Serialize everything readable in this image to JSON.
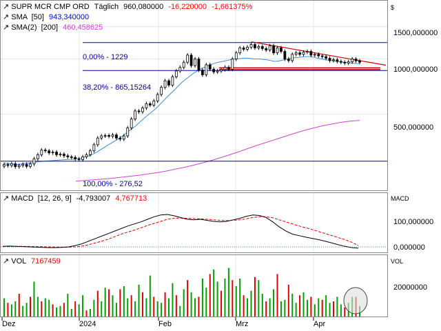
{
  "header": {
    "symbol": "SUPR MCR CMP ORD",
    "interval": "Täglich",
    "last": "960,080000",
    "change": "-16,220000",
    "change_pct": "-1,661375%",
    "currency": "$"
  },
  "colors": {
    "up": "#00a000",
    "down": "#e00000",
    "sma50": "#3a8fd8",
    "sma200": "#cc44cc",
    "fib": "#0000a0",
    "trend": "#d00000",
    "macd": "#000000",
    "signal": "#e00000",
    "label_blue": "#0000ff",
    "label_red": "#ff0000",
    "grid": "#e4e4e4"
  },
  "indicators": {
    "sma50_label": "SMA",
    "sma50_param": "[50]",
    "sma50_value": "943,340000",
    "sma200_label": "SMA(2)",
    "sma200_param": "[200]",
    "sma200_value": "460,458625",
    "macd_label": "MACD",
    "macd_param": "[12, 26, 9]",
    "macd_value": "-4,793007",
    "signal_value": "4,767713",
    "vol_label": "VOL",
    "vol_value": "7167459"
  },
  "fib_labels": {
    "top": "0,00% - 1229",
    "mid": "38,20% - 865,15264",
    "bottom": "100,00% - 276,52"
  },
  "axes": {
    "price_ticks": [
      "1500,000000",
      "1000,000000",
      "500,000000"
    ],
    "macd_title": "MACD",
    "macd_ticks": [
      "100,000000",
      "0,000000"
    ],
    "vol_title": "VOL",
    "vol_ticks": [
      "20000000"
    ],
    "x_ticks": [
      "Dez",
      "2024",
      "Feb",
      "Mrz",
      "Apr"
    ]
  },
  "chart_data": {
    "type": "candlestick",
    "price_scale": "log",
    "ylim": [
      190,
      2100
    ],
    "fib_levels": [
      1229,
      865.15264,
      276.52
    ],
    "price_closes": [
      265,
      262,
      268,
      258,
      262,
      266,
      259,
      267,
      285,
      300,
      318,
      315,
      307,
      310,
      300,
      302,
      296,
      292,
      290,
      284,
      282,
      292,
      300,
      315,
      340,
      370,
      380,
      382,
      378,
      385,
      370,
      365,
      380,
      420,
      470,
      520,
      515,
      540,
      570,
      560,
      590,
      640,
      700,
      760,
      720,
      800,
      860,
      900,
      960,
      1050,
      920,
      1000,
      870,
      820,
      930,
      880,
      850,
      860,
      875,
      900,
      880,
      1000,
      1080,
      1150,
      1130,
      1160,
      1200,
      1150,
      1170,
      1140,
      1120,
      1180,
      1080,
      1150,
      1100,
      1000,
      980,
      1060,
      1080,
      1060,
      1090,
      1100,
      1050,
      1060,
      1040,
      1030,
      1010,
      980,
      990,
      970,
      960,
      950,
      965,
      1000,
      976,
      960
    ],
    "sma50": [
      270,
      268,
      266,
      265,
      266,
      268,
      270,
      271,
      273,
      275,
      276,
      277,
      278,
      279,
      280,
      281,
      282,
      283,
      284,
      286,
      288,
      292,
      296,
      302,
      310,
      320,
      330,
      340,
      350,
      360,
      372,
      385,
      400,
      415,
      430,
      450,
      470,
      490,
      510,
      530,
      555,
      585,
      615,
      645,
      675,
      710,
      745,
      775,
      805,
      835,
      860,
      885,
      905,
      925,
      940,
      955,
      965,
      975,
      985,
      995,
      1000,
      1005,
      1010,
      1010,
      1005,
      1000,
      1000,
      995,
      990,
      980,
      970,
      975,
      985,
      995,
      1005,
      1015,
      1020,
      1025,
      1030,
      1030,
      1025,
      1010,
      1000,
      990,
      985,
      978,
      970,
      965,
      960,
      955,
      950,
      945,
      943
    ],
    "sma200": [
      215,
      217,
      219,
      221,
      223,
      226,
      229,
      232,
      236,
      240,
      245,
      251,
      257,
      264,
      272,
      281,
      291,
      302,
      314,
      327,
      340,
      353,
      366,
      380,
      394,
      408,
      420,
      432,
      442,
      451,
      458,
      462
    ],
    "macd": [
      2,
      3,
      2,
      1,
      0,
      -1,
      -2,
      -3,
      -3,
      -2,
      0,
      5,
      12,
      22,
      32,
      42,
      52,
      62,
      72,
      82,
      90,
      98,
      108,
      118,
      125,
      127,
      122,
      115,
      108,
      106,
      108,
      104,
      100,
      98,
      100,
      106,
      112,
      120,
      125,
      123,
      115,
      98,
      78,
      62,
      50,
      44,
      38,
      33,
      28,
      22,
      15,
      8,
      2,
      -3,
      -5
    ],
    "signal": [
      1,
      1.5,
      2,
      2,
      1.5,
      1,
      0.5,
      0,
      -0.5,
      -1,
      -1.2,
      0,
      3,
      8,
      15,
      22,
      30,
      40,
      50,
      58,
      66,
      75,
      84,
      92,
      100,
      108,
      112,
      113,
      112,
      111,
      110,
      108,
      106,
      104,
      103,
      104,
      106,
      110,
      115,
      118,
      118,
      114,
      106,
      98,
      90,
      82,
      75,
      68,
      60,
      52,
      44,
      36,
      28,
      18,
      5
    ],
    "volume": [
      1.2,
      0.9,
      0.8,
      1.0,
      1.5,
      0.7,
      0.9,
      1.3,
      2.3,
      1.3,
      1.0,
      1.2,
      1.1,
      0.8,
      0.6,
      0.7,
      0.9,
      1.5,
      0.5,
      1.0,
      0.8,
      1.4,
      0.4,
      0.5,
      1.1,
      1.7,
      1.0,
      1.9,
      1.8,
      1.4,
      0.9,
      1.8,
      2.0,
      1.2,
      1.4,
      1.0,
      2.1,
      1.6,
      1.2,
      2.7,
      1.3,
      1.0,
      0.9,
      1.6,
      1.2,
      2.2,
      1.4,
      0.7,
      1.8,
      2.4,
      1.6,
      1.2,
      1.3,
      2.5,
      1.9,
      2.8,
      3.1,
      2.3,
      1.7,
      2.5,
      3.2,
      2.4,
      2.0,
      2.5,
      1.4,
      1.2,
      1.7,
      2.6,
      2.4,
      1.5,
      1.0,
      1.2,
      1.8,
      2.8,
      1.0,
      1.1,
      2.1,
      1.5,
      0.9,
      1.4,
      1.6,
      1.1,
      1.3,
      0.8,
      1.2,
      1.1,
      1.4,
      0.9,
      1.0,
      1.3,
      0.8,
      0.6,
      0.9,
      1.3,
      1.3,
      0.7
    ]
  }
}
